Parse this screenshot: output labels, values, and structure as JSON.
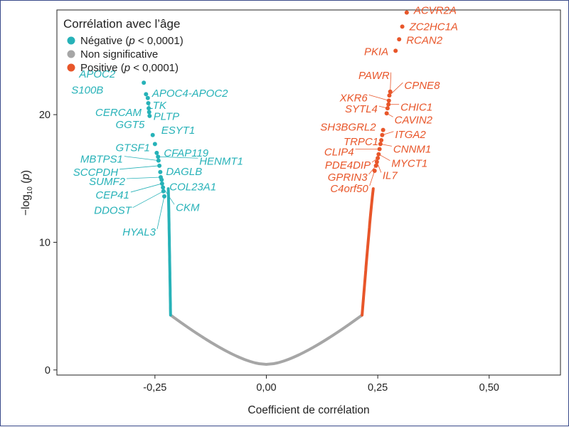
{
  "chart_data": {
    "type": "scatter",
    "xlabel": "Coefficient de corrélation",
    "ylabel": {
      "main": "−log",
      "sub": "10",
      "rest": " (p)"
    },
    "xlim": [
      -0.47,
      0.66
    ],
    "ylim": [
      -0.4,
      28.2
    ],
    "x_ticks": [
      {
        "value": -0.25,
        "label": "-0,25"
      },
      {
        "value": 0.0,
        "label": "0,00"
      },
      {
        "value": 0.25,
        "label": "0,25"
      },
      {
        "value": 0.5,
        "label": "0,50"
      }
    ],
    "y_ticks": [
      {
        "value": 0,
        "label": "0"
      },
      {
        "value": 10,
        "label": "10"
      },
      {
        "value": 20,
        "label": "20"
      }
    ],
    "grid": false,
    "legend": {
      "title": "Corrélation avec l’âge",
      "placement": "top-left",
      "items": [
        {
          "key": "negative",
          "label": "Négative (p < 0,0001)",
          "color": "#27b2b8"
        },
        {
          "key": "none",
          "label": "Non significative",
          "color": "#a6a6a6"
        },
        {
          "key": "positive",
          "label": "Positive (p < 0,0001)",
          "color": "#e8562a"
        }
      ]
    },
    "colors": {
      "negative": "#27b2b8",
      "none": "#a6a6a6",
      "positive": "#e8562a",
      "label_positive": "#e8562a",
      "label_negative": "#27b2b8"
    },
    "curve": {
      "negative_x_range": [
        -0.22,
        -0.118
      ],
      "positive_x_range": [
        0.118,
        0.24
      ],
      "significance_boundary_y": 4.3
    },
    "series": [
      {
        "name": "Négative (p < 0,0001)",
        "key": "negative",
        "points": [
          {
            "label": "APOC2",
            "x": -0.275,
            "y": 22.5
          },
          {
            "label": "S100B",
            "x": -0.27,
            "y": 21.6
          },
          {
            "label": "APOC4-APOC2",
            "x": -0.266,
            "y": 21.3
          },
          {
            "label": "LTK",
            "x": -0.265,
            "y": 20.9
          },
          {
            "label": "CERCAM",
            "x": -0.264,
            "y": 20.5
          },
          {
            "label": "PLTP",
            "x": -0.263,
            "y": 20.2
          },
          {
            "label": "GGT5",
            "x": -0.262,
            "y": 19.9
          },
          {
            "label": "ESYT1",
            "x": -0.255,
            "y": 18.4
          },
          {
            "label": "GTSF1",
            "x": -0.25,
            "y": 17.7
          },
          {
            "label": "CFAP119",
            "x": -0.246,
            "y": 17.0
          },
          {
            "label": "HENMT1",
            "x": -0.243,
            "y": 16.7
          },
          {
            "label": "MBTPS1",
            "x": -0.242,
            "y": 16.4
          },
          {
            "label": "SCCPDH",
            "x": -0.24,
            "y": 16.0
          },
          {
            "label": "DAGLB",
            "x": -0.238,
            "y": 15.5
          },
          {
            "label": "SUMF2",
            "x": -0.237,
            "y": 15.1
          },
          {
            "label": "COL23A1",
            "x": -0.235,
            "y": 14.9
          },
          {
            "label": "CEP41",
            "x": -0.234,
            "y": 14.6
          },
          {
            "label": "CKM",
            "x": -0.232,
            "y": 14.3
          },
          {
            "label": "DDOST",
            "x": -0.231,
            "y": 14.0
          },
          {
            "label": "HYAL3",
            "x": -0.229,
            "y": 13.6
          }
        ]
      },
      {
        "name": "Positive (p < 0,0001)",
        "key": "positive",
        "points": [
          {
            "label": "ACVR2A",
            "x": 0.315,
            "y": 28.0
          },
          {
            "label": "ZC2HC1A",
            "x": 0.305,
            "y": 26.9
          },
          {
            "label": "RCAN2",
            "x": 0.298,
            "y": 25.9
          },
          {
            "label": "PKIA",
            "x": 0.29,
            "y": 25.0
          },
          {
            "label": "PAWR",
            "x": 0.278,
            "y": 21.8
          },
          {
            "label": "CPNE8",
            "x": 0.276,
            "y": 21.5
          },
          {
            "label": "XKR6",
            "x": 0.275,
            "y": 21.1
          },
          {
            "label": "CHIC1",
            "x": 0.274,
            "y": 20.8
          },
          {
            "label": "SYTL4",
            "x": 0.272,
            "y": 20.5
          },
          {
            "label": "CAVIN2",
            "x": 0.27,
            "y": 20.1
          },
          {
            "label": "SH3BGRL2",
            "x": 0.262,
            "y": 18.8
          },
          {
            "label": "ITGA2",
            "x": 0.26,
            "y": 18.4
          },
          {
            "label": "TRPC1",
            "x": 0.258,
            "y": 18.0
          },
          {
            "label": "CNNM1",
            "x": 0.256,
            "y": 17.7
          },
          {
            "label": "CLIP4",
            "x": 0.254,
            "y": 17.3
          },
          {
            "label": "MYCT1",
            "x": 0.252,
            "y": 16.9
          },
          {
            "label": "PDE4DIP",
            "x": 0.25,
            "y": 16.6
          },
          {
            "label": "IL7",
            "x": 0.248,
            "y": 16.3
          },
          {
            "label": "GPRIN3",
            "x": 0.246,
            "y": 16.0
          },
          {
            "label": "C4orf50",
            "x": 0.243,
            "y": 15.6
          }
        ]
      }
    ]
  }
}
